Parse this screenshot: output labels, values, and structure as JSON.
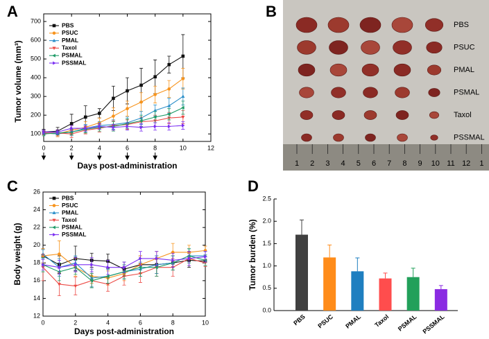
{
  "photo": {
    "panel": "B",
    "row_labels": [
      "PBS",
      "PSUC",
      "PMAL",
      "PSMAL",
      "Taxol",
      "PSSMAL"
    ],
    "ruler_labels": [
      "1",
      "2",
      "3",
      "4",
      "5",
      "6",
      "7",
      "8",
      "9",
      "10",
      "11",
      "12",
      "1"
    ]
  },
  "chart_data": [
    {
      "type": "line",
      "panel": "A",
      "xlabel": "Days post-administration",
      "ylabel": "Tumor volume (mm³)",
      "x": [
        0,
        1,
        2,
        3,
        4,
        5,
        6,
        7,
        8,
        9,
        10
      ],
      "xlim": [
        0,
        12
      ],
      "xticks": [
        0,
        2,
        4,
        6,
        8,
        10,
        12
      ],
      "ylim": [
        60,
        700
      ],
      "yticks": [
        100,
        200,
        300,
        400,
        500,
        600,
        700
      ],
      "frame": true,
      "arrows_x": [
        0,
        2,
        4,
        6,
        8
      ],
      "series": [
        {
          "name": "PBS",
          "color": "#111111",
          "marker": "square",
          "values": [
            110,
            115,
            155,
            190,
            210,
            290,
            330,
            360,
            405,
            470,
            515
          ],
          "errors": [
            15,
            20,
            50,
            60,
            25,
            65,
            70,
            90,
            90,
            45,
            115
          ]
        },
        {
          "name": "PSUC",
          "color": "#f7941d",
          "marker": "circle",
          "values": [
            105,
            100,
            120,
            135,
            160,
            195,
            235,
            270,
            310,
            340,
            395
          ],
          "errors": [
            10,
            15,
            25,
            30,
            25,
            45,
            40,
            50,
            45,
            45,
            55
          ]
        },
        {
          "name": "PMAL",
          "color": "#2b8fc9",
          "marker": "up",
          "values": [
            105,
            100,
            110,
            130,
            145,
            150,
            160,
            185,
            225,
            250,
            300
          ],
          "errors": [
            10,
            10,
            20,
            20,
            20,
            25,
            30,
            35,
            30,
            40,
            45
          ]
        },
        {
          "name": "Taxol",
          "color": "#ec4a45",
          "marker": "down",
          "values": [
            105,
            105,
            100,
            120,
            130,
            145,
            150,
            165,
            170,
            185,
            190
          ],
          "errors": [
            10,
            15,
            20,
            20,
            20,
            25,
            25,
            25,
            30,
            30,
            35
          ]
        },
        {
          "name": "PSMAL",
          "color": "#1d9a66",
          "marker": "left",
          "values": [
            100,
            105,
            110,
            125,
            135,
            140,
            155,
            170,
            190,
            205,
            240
          ],
          "errors": [
            10,
            10,
            15,
            20,
            20,
            25,
            25,
            30,
            30,
            30,
            35
          ]
        },
        {
          "name": "PSSMAL",
          "color": "#7b2ff2",
          "marker": "right",
          "values": [
            110,
            110,
            130,
            130,
            140,
            135,
            140,
            135,
            140,
            140,
            145
          ],
          "errors": [
            10,
            10,
            15,
            15,
            15,
            15,
            20,
            20,
            20,
            20,
            20
          ]
        }
      ]
    },
    {
      "type": "line",
      "panel": "C",
      "xlabel": "Days post-administration",
      "ylabel": "Body weight (g)",
      "x": [
        0,
        1,
        2,
        3,
        4,
        5,
        6,
        7,
        8,
        9,
        10
      ],
      "xlim": [
        0,
        10
      ],
      "xticks": [
        0,
        2,
        4,
        6,
        8,
        10
      ],
      "ylim": [
        12,
        26
      ],
      "yticks": [
        12,
        14,
        16,
        18,
        20,
        22,
        24,
        26
      ],
      "frame": true,
      "series": [
        {
          "name": "PBS",
          "color": "#111111",
          "marker": "square",
          "values": [
            18.8,
            17.8,
            18.5,
            18.3,
            18.2,
            17.3,
            17.8,
            17.8,
            18.0,
            18.3,
            18.2
          ],
          "errors": [
            0.8,
            1.0,
            1.4,
            0.8,
            0.8,
            0.8,
            1.0,
            1.0,
            0.8,
            0.8,
            0.5
          ]
        },
        {
          "name": "PSUC",
          "color": "#f7941d",
          "marker": "circle",
          "values": [
            18.8,
            19.0,
            17.5,
            16.5,
            16.3,
            16.8,
            17.8,
            18.5,
            19.2,
            19.2,
            19.4
          ],
          "errors": [
            0.8,
            1.5,
            1.0,
            0.8,
            0.8,
            0.8,
            1.0,
            0.8,
            1.0,
            0.8,
            0.5
          ]
        },
        {
          "name": "PMAL",
          "color": "#2b8fc9",
          "marker": "up",
          "values": [
            19.0,
            17.5,
            18.0,
            16.3,
            16.5,
            17.0,
            17.3,
            17.8,
            18.0,
            18.8,
            18.8
          ],
          "errors": [
            0.5,
            1.0,
            0.8,
            1.0,
            0.8,
            0.8,
            0.8,
            1.0,
            0.8,
            0.8,
            0.5
          ]
        },
        {
          "name": "Taxol",
          "color": "#ec4a45",
          "marker": "down",
          "values": [
            17.5,
            15.6,
            15.4,
            16.0,
            15.6,
            16.5,
            16.8,
            17.5,
            17.5,
            18.5,
            18.0
          ],
          "errors": [
            1.5,
            1.3,
            1.0,
            0.8,
            0.8,
            1.0,
            1.0,
            1.0,
            1.0,
            0.8,
            0.4
          ]
        },
        {
          "name": "PSMAL",
          "color": "#1d9a66",
          "marker": "left",
          "values": [
            17.8,
            17.0,
            17.5,
            16.0,
            16.5,
            17.0,
            17.5,
            17.5,
            18.0,
            18.8,
            18.3
          ],
          "errors": [
            0.8,
            1.0,
            0.8,
            0.8,
            0.8,
            0.8,
            1.0,
            1.0,
            0.8,
            0.8,
            0.6
          ]
        },
        {
          "name": "PSSMAL",
          "color": "#7b2ff2",
          "marker": "right",
          "values": [
            17.8,
            17.5,
            17.8,
            17.8,
            17.5,
            17.5,
            18.5,
            18.5,
            18.3,
            18.5,
            18.7
          ],
          "errors": [
            0.6,
            0.8,
            0.8,
            0.8,
            0.8,
            0.6,
            0.8,
            0.8,
            0.8,
            0.8,
            0.6
          ]
        }
      ]
    },
    {
      "type": "bar",
      "panel": "D",
      "ylabel": "Tumor burden (%)",
      "categories": [
        "PBS",
        "PSUC",
        "PMAL",
        "Taxol",
        "PSMAL",
        "PSSMAL"
      ],
      "values": [
        1.7,
        1.19,
        0.88,
        0.72,
        0.75,
        0.48
      ],
      "errors": [
        0.33,
        0.28,
        0.3,
        0.12,
        0.2,
        0.08
      ],
      "colors": [
        "#404040",
        "#ff8c1a",
        "#1f7fc0",
        "#ff4d4d",
        "#22a05a",
        "#8a2be2"
      ],
      "ylim": [
        0,
        2.5
      ],
      "yticks": [
        {
          "value": 0,
          "label": "0.0"
        },
        0.5,
        {
          "value": 1,
          "label": "1.0"
        },
        1.5,
        {
          "value": 2,
          "label": "2.0"
        },
        2.5
      ],
      "frame": false
    }
  ]
}
